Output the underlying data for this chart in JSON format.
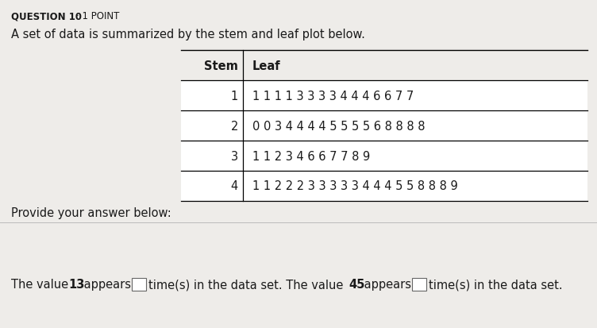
{
  "question_label": "QUESTION 10",
  "dot_point": "· 1 POINT",
  "description": "A set of data is summarized by the stem and leaf plot below.",
  "stem_header": "Stem",
  "leaf_header": "Leaf",
  "rows": [
    {
      "stem": "1",
      "leaf": "1 1 1 1 3 3 3 3 4 4 4 6 6 7 7"
    },
    {
      "stem": "2",
      "leaf": "0 0 3 4 4 4 4 5 5 5 5 6 8 8 8 8"
    },
    {
      "stem": "3",
      "leaf": "1 1 2 3 4 6 6 7 7 8 9"
    },
    {
      "stem": "4",
      "leaf": "1 1 2 2 2 3 3 3 3 3 4 4 4 5 5 8 8 8 9"
    }
  ],
  "provide_text": "Provide your answer below:",
  "bold_13": "13",
  "bold_45": "45",
  "bg_color": "#eeece9",
  "table_bg": "#ffffff",
  "text_color": "#1a1a1a",
  "fs_header": 8.5,
  "fs_table": 10.5,
  "fs_body": 10.5,
  "fs_answer": 10.5
}
